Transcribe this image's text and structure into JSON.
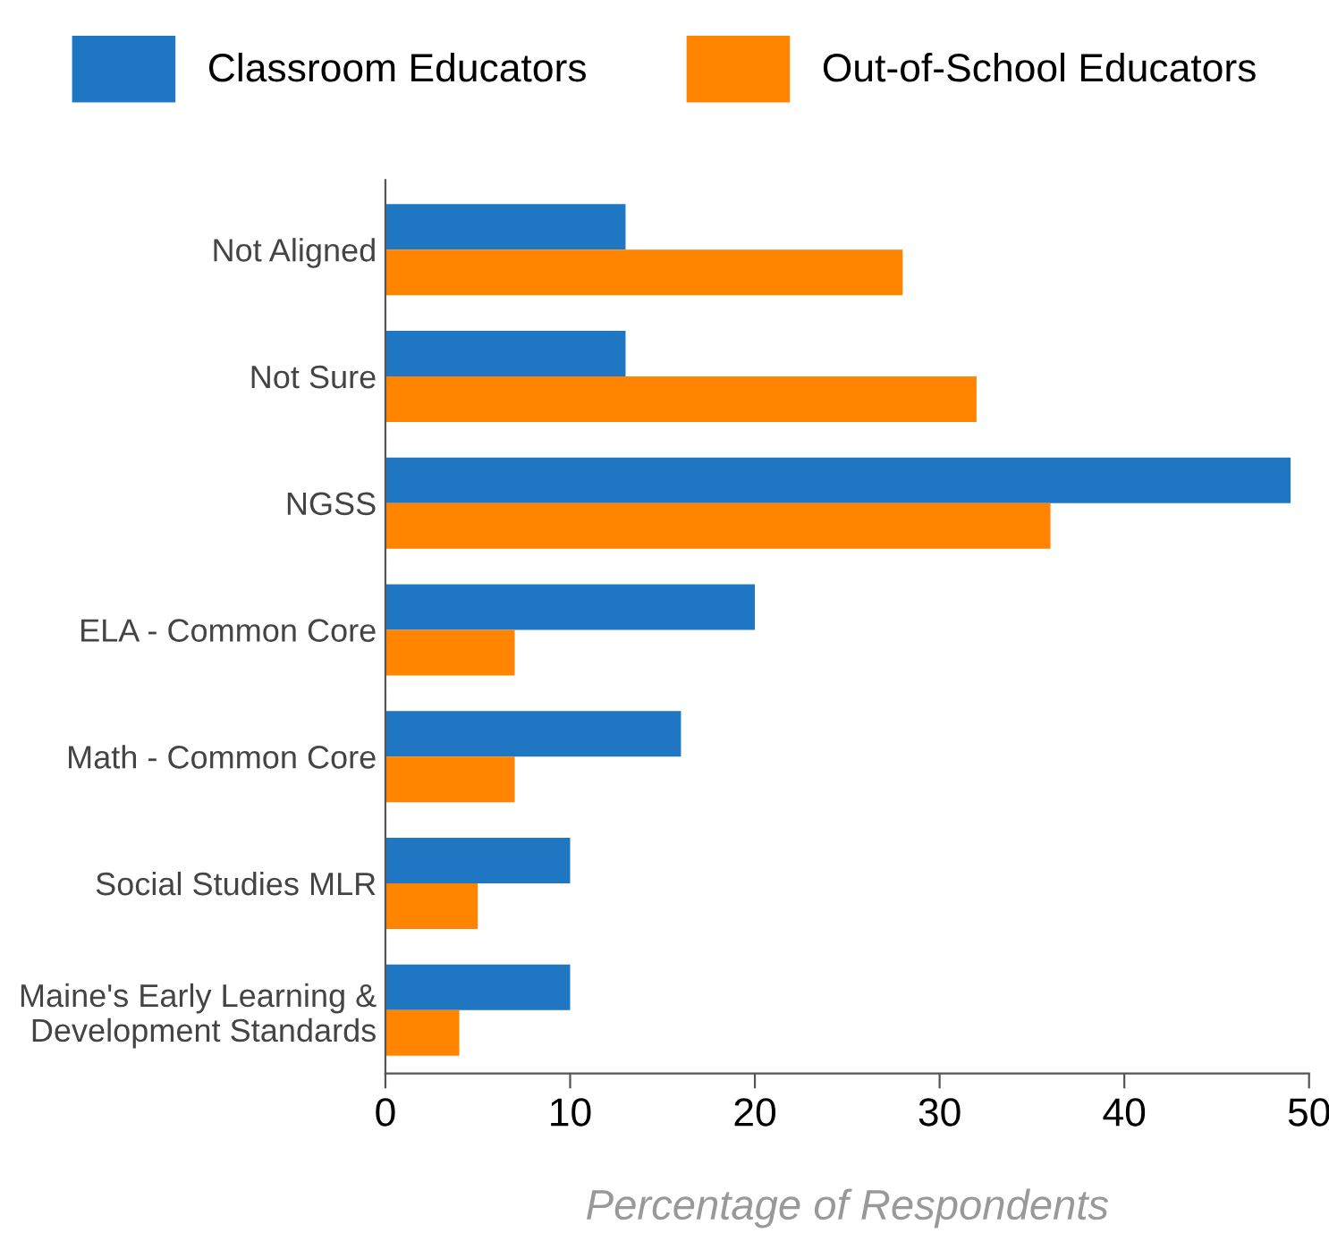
{
  "chart_data": {
    "type": "bar",
    "orientation": "horizontal",
    "xlabel": "Percentage of Respondents",
    "categories": [
      "Not Aligned",
      "Not Sure",
      "NGSS",
      "ELA - Common Core",
      "Math - Common Core",
      "Social Studies MLR",
      "Maine's Early Learning &\nDevelopment Standards"
    ],
    "series": [
      {
        "name": "Classroom Educators",
        "color": "#1f77c4",
        "values": [
          13,
          13,
          49,
          20,
          16,
          10,
          10
        ]
      },
      {
        "name": "Out-of-School Educators",
        "color": "#ff8500",
        "values": [
          28,
          32,
          36,
          7,
          7,
          5,
          4
        ]
      }
    ],
    "xlim": [
      0,
      50
    ],
    "xticks": [
      0,
      10,
      20,
      30,
      40,
      50
    ],
    "grid": false,
    "legend": "top"
  }
}
